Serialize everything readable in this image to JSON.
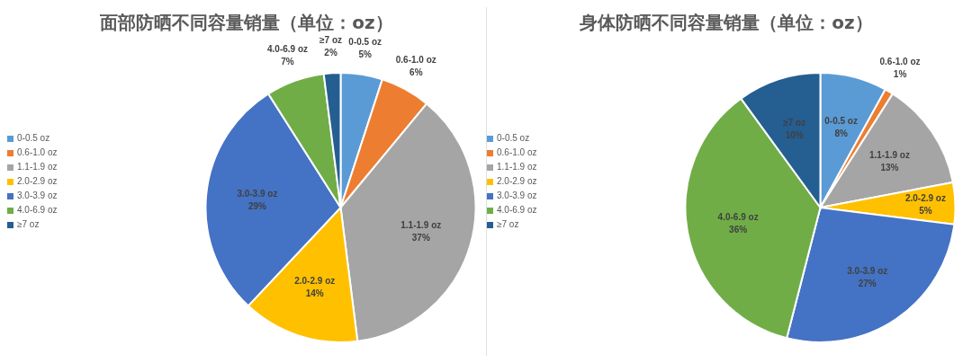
{
  "chart_data": [
    {
      "type": "pie",
      "title": "面部防晒不同容量销量（单位：oz）",
      "categories": [
        "0-0.5 oz",
        "0.6-1.0 oz",
        "1.1-1.9 oz",
        "2.0-2.9 oz",
        "3.0-3.9 oz",
        "4.0-6.9 oz",
        "≥7 oz"
      ],
      "values": [
        5,
        6,
        37,
        14,
        29,
        7,
        2
      ],
      "value_labels": [
        "5%",
        "6%",
        "37%",
        "14%",
        "29%",
        "7%",
        "2%"
      ],
      "colors": [
        "#5b9bd5",
        "#ed7d31",
        "#a5a5a5",
        "#ffc000",
        "#4472c4",
        "#70ad47",
        "#255e91"
      ],
      "legend": "left"
    },
    {
      "type": "pie",
      "title": "身体防晒不同容量销量（单位：oz）",
      "categories": [
        "0-0.5 oz",
        "0.6-1.0 oz",
        "1.1-1.9 oz",
        "2.0-2.9 oz",
        "3.0-3.9 oz",
        "4.0-6.9 oz",
        "≥7 oz"
      ],
      "values": [
        8,
        1,
        13,
        5,
        27,
        36,
        10
      ],
      "value_labels": [
        "8%",
        "1%",
        "13%",
        "5%",
        "27%",
        "36%",
        "10%"
      ],
      "colors": [
        "#5b9bd5",
        "#ed7d31",
        "#a5a5a5",
        "#ffc000",
        "#4472c4",
        "#70ad47",
        "#255e91"
      ],
      "legend": "left"
    }
  ]
}
